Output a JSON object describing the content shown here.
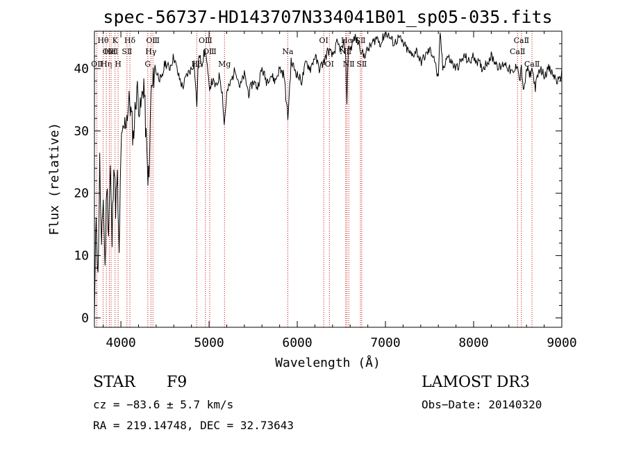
{
  "chart_data": {
    "type": "line",
    "title": "spec-56737-HD143707N334041B01_sp05-035.fits",
    "xlabel": "Wavelength (Å)",
    "ylabel": "Flux (relative)",
    "xlim": [
      3700,
      9000
    ],
    "ylim": [
      -1.5,
      46
    ],
    "x_ticks": [
      4000,
      5000,
      6000,
      7000,
      8000,
      9000
    ],
    "x_tick_labels": [
      "4000",
      "5000",
      "6000",
      "7000",
      "8000",
      "9000"
    ],
    "y_ticks": [
      0,
      10,
      20,
      30,
      40
    ],
    "y_tick_labels": [
      "0",
      "10",
      "20",
      "30",
      "40"
    ],
    "grid": false,
    "series": [
      {
        "name": "spectrum",
        "color": "#000000",
        "x": [
          3700,
          3720,
          3740,
          3760,
          3780,
          3800,
          3820,
          3840,
          3860,
          3880,
          3900,
          3920,
          3940,
          3960,
          3980,
          4000,
          4030,
          4060,
          4100,
          4140,
          4180,
          4220,
          4260,
          4300,
          4320,
          4340,
          4360,
          4380,
          4420,
          4460,
          4500,
          4550,
          4600,
          4650,
          4700,
          4750,
          4800,
          4830,
          4861,
          4880,
          4920,
          4960,
          5000,
          5040,
          5080,
          5120,
          5150,
          5172,
          5200,
          5250,
          5300,
          5350,
          5400,
          5450,
          5500,
          5550,
          5600,
          5650,
          5700,
          5750,
          5800,
          5850,
          5893,
          5930,
          5970,
          6000,
          6050,
          6100,
          6150,
          6200,
          6250,
          6300,
          6350,
          6400,
          6450,
          6500,
          6530,
          6550,
          6563,
          6580,
          6600,
          6650,
          6700,
          6750,
          6800,
          6850,
          6900,
          6950,
          7000,
          7050,
          7100,
          7150,
          7200,
          7250,
          7300,
          7350,
          7400,
          7450,
          7500,
          7550,
          7600,
          7620,
          7650,
          7700,
          7750,
          7800,
          7850,
          7900,
          7950,
          8000,
          8050,
          8100,
          8150,
          8200,
          8250,
          8300,
          8350,
          8400,
          8450,
          8498,
          8520,
          8542,
          8570,
          8600,
          8640,
          8662,
          8700,
          8750,
          8800,
          8850,
          8900,
          8950,
          8980,
          9000
        ],
        "y": [
          0,
          17,
          6,
          25,
          10,
          20,
          8,
          22,
          14,
          24,
          12,
          26,
          18,
          22,
          9,
          27,
          30,
          32,
          35,
          29,
          37,
          33,
          38,
          24,
          22,
          36,
          37,
          40,
          39,
          38,
          41,
          40,
          42,
          39,
          37,
          39,
          40,
          41,
          34,
          42,
          41,
          43,
          37,
          38,
          37,
          39,
          36,
          31,
          36,
          38,
          40,
          37,
          39,
          36,
          38,
          37,
          40,
          38,
          39,
          38,
          40,
          39,
          32,
          41,
          40,
          39,
          38,
          41,
          40,
          42,
          40,
          41,
          43,
          42,
          44,
          43,
          44,
          42,
          34,
          44,
          43,
          45,
          44,
          42,
          43,
          44,
          45,
          44,
          46,
          45,
          44,
          45,
          44,
          43,
          42,
          43,
          41,
          42,
          43,
          42,
          38,
          46,
          40,
          42,
          41,
          40,
          41,
          42,
          41,
          42,
          41,
          40,
          41,
          42,
          41,
          40,
          41,
          40,
          39,
          41,
          38,
          40,
          36,
          40,
          39,
          40,
          37,
          40,
          39,
          40,
          39,
          38,
          38,
          40
        ]
      }
    ],
    "line_markers": [
      {
        "label": "OⅡ",
        "wavelength": 3727,
        "row": 2
      },
      {
        "label": "Hη",
        "wavelength": 3835,
        "row": 2
      },
      {
        "label": "Hθ",
        "wavelength": 3798,
        "row": 0
      },
      {
        "label": "OⅢ",
        "wavelength": 3869,
        "row": 1
      },
      {
        "label": "HeⅠ",
        "wavelength": 3889,
        "row": 1
      },
      {
        "label": "K",
        "wavelength": 3934,
        "row": 0
      },
      {
        "label": "H",
        "wavelength": 3968,
        "row": 2
      },
      {
        "label": "SⅡ",
        "wavelength": 4069,
        "row": 1
      },
      {
        "label": "Hδ",
        "wavelength": 4102,
        "row": 0
      },
      {
        "label": "OⅢ",
        "wavelength": 4363,
        "row": 0
      },
      {
        "label": "Hγ",
        "wavelength": 4341,
        "row": 1
      },
      {
        "label": "G",
        "wavelength": 4305,
        "row": 2
      },
      {
        "label": "OⅢ",
        "wavelength": 4959,
        "row": 0
      },
      {
        "label": "OⅢ",
        "wavelength": 5007,
        "row": 1
      },
      {
        "label": "Hβ",
        "wavelength": 4861,
        "row": 2
      },
      {
        "label": "Mg",
        "wavelength": 5175,
        "row": 2
      },
      {
        "label": "Na",
        "wavelength": 5893,
        "row": 1
      },
      {
        "label": "OⅠ",
        "wavelength": 6300,
        "row": 0
      },
      {
        "label": "OⅠ",
        "wavelength": 6364,
        "row": 2
      },
      {
        "label": "Hα",
        "wavelength": 6563,
        "row": 0
      },
      {
        "label": "SⅡ",
        "wavelength": 6716,
        "row": 0
      },
      {
        "label": "NⅡ",
        "wavelength": 6548,
        "row": 1
      },
      {
        "label": "NⅡ",
        "wavelength": 6584,
        "row": 2
      },
      {
        "label": "SⅡ",
        "wavelength": 6731,
        "row": 2
      },
      {
        "label": "CaⅡ",
        "wavelength": 8542,
        "row": 0
      },
      {
        "label": "CaⅡ",
        "wavelength": 8498,
        "row": 1
      },
      {
        "label": "CaⅡ",
        "wavelength": 8662,
        "row": 2
      }
    ]
  },
  "info": {
    "object_class": "STAR",
    "subclass": "F9",
    "survey": "LAMOST DR3",
    "redshift": "cz = −83.6 ± 5.7 km/s",
    "obs_date": "Obs−Date: 20140320",
    "coords": "RA = 219.14748, DEC =  32.73643"
  },
  "colors": {
    "axis": "#000000",
    "spectrum": "#000000",
    "line_marker": "#cc0000"
  }
}
